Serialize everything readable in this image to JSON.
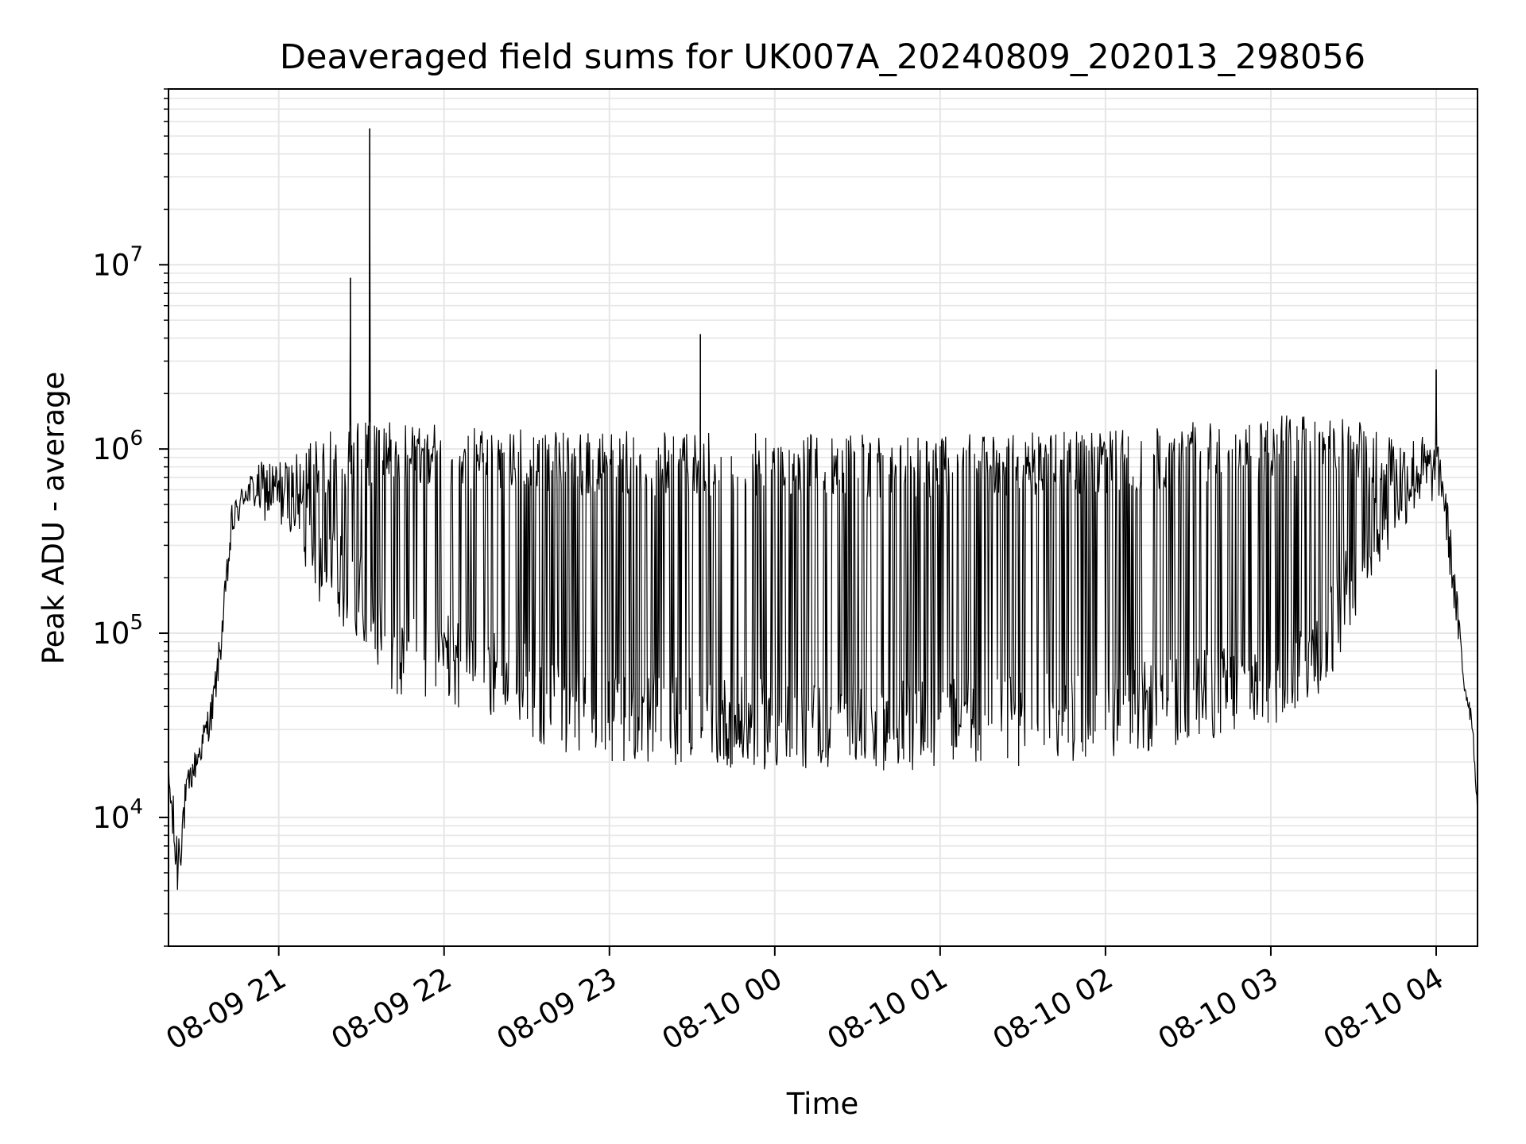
{
  "chart_data": {
    "type": "line",
    "title": "Deaveraged field sums for UK007A_20240809_202013_298056",
    "xlabel": "Time",
    "ylabel": "Peak ADU - average",
    "y_scale": "log",
    "ylim": [
      2000,
      90000000
    ],
    "xlim": [
      "2024-08-09 20:20",
      "2024-08-10 04:15"
    ],
    "grid": true,
    "legend": "none",
    "line_color": "#000000",
    "grid_color": "#e6e6e6",
    "x_ticks": [
      {
        "value": "2024-08-09 21:00",
        "label": "08-09 21"
      },
      {
        "value": "2024-08-09 22:00",
        "label": "08-09 22"
      },
      {
        "value": "2024-08-09 23:00",
        "label": "08-09 23"
      },
      {
        "value": "2024-08-10 00:00",
        "label": "08-10 00"
      },
      {
        "value": "2024-08-10 01:00",
        "label": "08-10 01"
      },
      {
        "value": "2024-08-10 02:00",
        "label": "08-10 02"
      },
      {
        "value": "2024-08-10 03:00",
        "label": "08-10 03"
      },
      {
        "value": "2024-08-10 04:00",
        "label": "08-10 04"
      }
    ],
    "y_ticks": [
      {
        "value": 10000,
        "base": "10",
        "exp": "4"
      },
      {
        "value": 100000,
        "base": "10",
        "exp": "5"
      },
      {
        "value": 1000000,
        "base": "10",
        "exp": "6"
      },
      {
        "value": 10000000,
        "base": "10",
        "exp": "7"
      }
    ],
    "series": [
      {
        "envelope": [
          {
            "x": "2024-08-09 20:20",
            "low": 14000,
            "high": 20000
          },
          {
            "x": "2024-08-09 20:23",
            "low": 3200,
            "high": 10000
          },
          {
            "x": "2024-08-09 20:27",
            "low": 12000,
            "high": 18000
          },
          {
            "x": "2024-08-09 20:32",
            "low": 20000,
            "high": 30000
          },
          {
            "x": "2024-08-09 20:36",
            "low": 30000,
            "high": 50000
          },
          {
            "x": "2024-08-09 20:39",
            "low": 70000,
            "high": 110000
          },
          {
            "x": "2024-08-09 20:43",
            "low": 300000,
            "high": 500000
          },
          {
            "x": "2024-08-09 20:48",
            "low": 500000,
            "high": 700000
          },
          {
            "x": "2024-08-09 20:55",
            "low": 400000,
            "high": 900000
          },
          {
            "x": "2024-08-09 21:05",
            "low": 350000,
            "high": 900000
          },
          {
            "x": "2024-08-09 21:15",
            "low": 130000,
            "high": 1200000
          },
          {
            "x": "2024-08-09 21:30",
            "low": 90000,
            "high": 1400000
          },
          {
            "x": "2024-08-09 21:45",
            "low": 40000,
            "high": 1400000
          },
          {
            "x": "2024-08-09 22:00",
            "low": 40000,
            "high": 1400000
          },
          {
            "x": "2024-08-09 22:20",
            "low": 35000,
            "high": 1300000
          },
          {
            "x": "2024-08-09 22:40",
            "low": 22000,
            "high": 1250000
          },
          {
            "x": "2024-08-09 23:00",
            "low": 20000,
            "high": 1250000
          },
          {
            "x": "2024-08-09 23:30",
            "low": 19000,
            "high": 1250000
          },
          {
            "x": "2024-08-10 00:00",
            "low": 18000,
            "high": 1250000
          },
          {
            "x": "2024-08-10 00:30",
            "low": 18000,
            "high": 1200000
          },
          {
            "x": "2024-08-10 01:00",
            "low": 18000,
            "high": 1200000
          },
          {
            "x": "2024-08-10 01:30",
            "low": 19000,
            "high": 1250000
          },
          {
            "x": "2024-08-10 02:00",
            "low": 20000,
            "high": 1250000
          },
          {
            "x": "2024-08-10 02:30",
            "low": 25000,
            "high": 1400000
          },
          {
            "x": "2024-08-10 03:00",
            "low": 30000,
            "high": 1500000
          },
          {
            "x": "2024-08-10 03:20",
            "low": 50000,
            "high": 1700000
          },
          {
            "x": "2024-08-10 03:40",
            "low": 250000,
            "high": 1300000
          },
          {
            "x": "2024-08-10 03:55",
            "low": 500000,
            "high": 1200000
          },
          {
            "x": "2024-08-10 04:02",
            "low": 500000,
            "high": 1000000
          },
          {
            "x": "2024-08-10 04:06",
            "low": 150000,
            "high": 300000
          },
          {
            "x": "2024-08-10 04:10",
            "low": 45000,
            "high": 70000
          },
          {
            "x": "2024-08-10 04:13",
            "low": 30000,
            "high": 40000
          },
          {
            "x": "2024-08-10 04:15",
            "low": 10000,
            "high": 12000
          }
        ],
        "spikes": [
          {
            "x": "2024-08-09 21:26",
            "y": 8500000
          },
          {
            "x": "2024-08-09 21:33",
            "y": 55000000
          },
          {
            "x": "2024-08-09 23:33",
            "y": 4200000
          },
          {
            "x": "2024-08-10 04:00",
            "y": 2700000
          }
        ]
      }
    ]
  }
}
